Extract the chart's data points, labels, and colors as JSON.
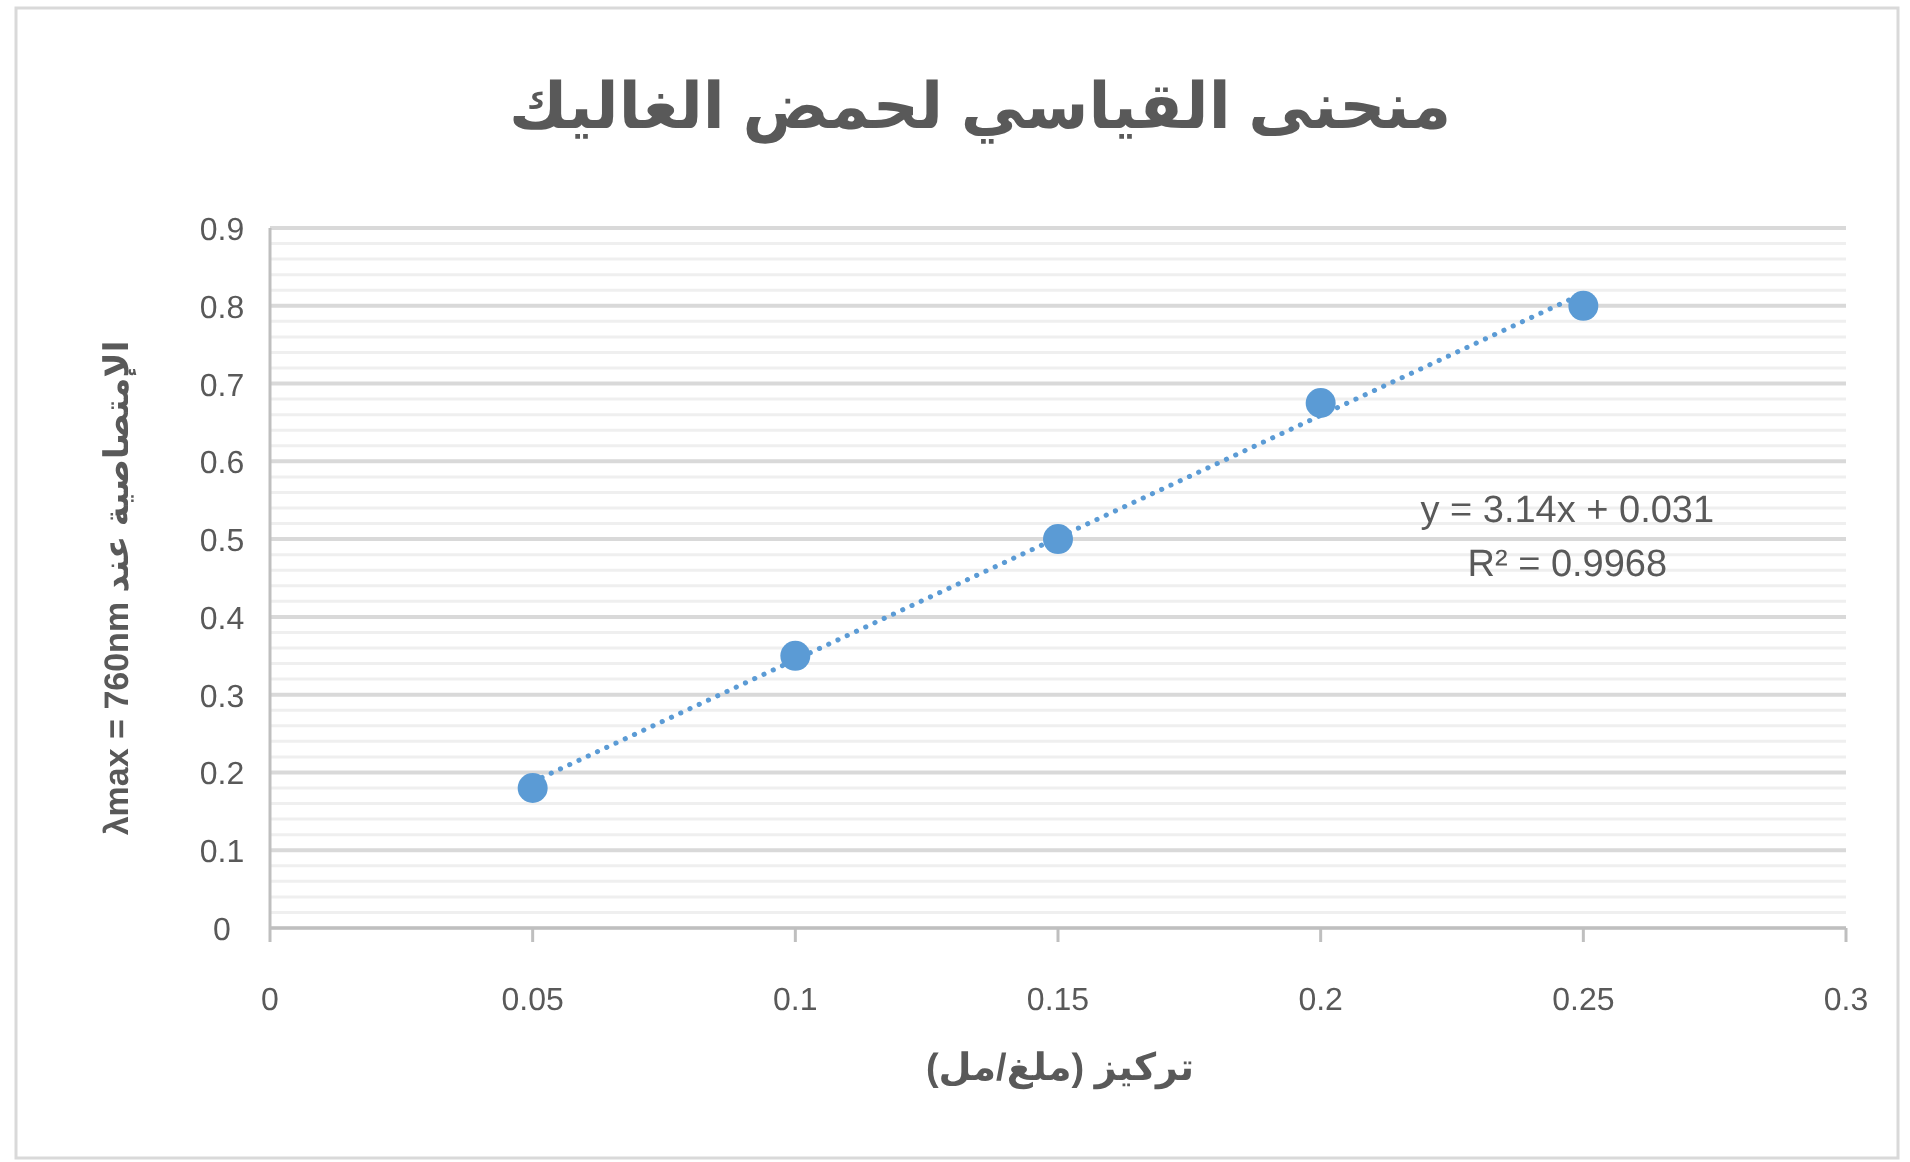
{
  "chart_data": {
    "type": "scatter",
    "title": "منحنى القياسي لحمض الغاليك",
    "xlabel": "تركيز (ملغ/مل)",
    "ylabel": "الإمتصاصية عند λmax = 760nm",
    "x": [
      0.05,
      0.1,
      0.15,
      0.2,
      0.25
    ],
    "series": [
      {
        "color": "#5b9bd5",
        "values": [
          0.18,
          0.35,
          0.5,
          0.675,
          0.8
        ],
        "marker": "circle"
      },
      {
        "type": "line",
        "color": "#5b9bd5",
        "x": [
          0.05,
          0.25
        ],
        "values": [
          0.188,
          0.816
        ],
        "line_style": "dotted",
        "marker": "none"
      }
    ],
    "annotations": [
      "y = 3.14x + 0.031",
      "R² = 0.9968"
    ],
    "xlim": [
      0,
      0.3
    ],
    "xticks": [
      0,
      0.05,
      0.1,
      0.15,
      0.2,
      0.25,
      0.3
    ],
    "ylim": [
      0,
      0.9
    ],
    "yticks": [
      0,
      {
        "value": 0.02,
        "label": null
      },
      {
        "value": 0.04,
        "label": null
      },
      {
        "value": 0.06,
        "label": null
      },
      {
        "value": 0.08,
        "label": null
      },
      0.1,
      {
        "value": 0.12,
        "label": null
      },
      {
        "value": 0.14,
        "label": null
      },
      {
        "value": 0.16,
        "label": null
      },
      {
        "value": 0.18,
        "label": null
      },
      0.2,
      {
        "value": 0.22,
        "label": null
      },
      {
        "value": 0.24,
        "label": null
      },
      {
        "value": 0.26,
        "label": null
      },
      {
        "value": 0.28,
        "label": null
      },
      0.3,
      {
        "value": 0.32,
        "label": null
      },
      {
        "value": 0.34,
        "label": null
      },
      {
        "value": 0.36,
        "label": null
      },
      {
        "value": 0.38,
        "label": null
      },
      0.4,
      {
        "value": 0.42,
        "label": null
      },
      {
        "value": 0.44,
        "label": null
      },
      {
        "value": 0.46,
        "label": null
      },
      {
        "value": 0.48,
        "label": null
      },
      0.5,
      {
        "value": 0.52,
        "label": null
      },
      {
        "value": 0.54,
        "label": null
      },
      {
        "value": 0.56,
        "label": null
      },
      {
        "value": 0.58,
        "label": null
      },
      0.6,
      {
        "value": 0.62,
        "label": null
      },
      {
        "value": 0.64,
        "label": null
      },
      {
        "value": 0.66,
        "label": null
      },
      {
        "value": 0.68,
        "label": null
      },
      0.7,
      {
        "value": 0.72,
        "label": null
      },
      {
        "value": 0.74,
        "label": null
      },
      {
        "value": 0.76,
        "label": null
      },
      {
        "value": 0.78,
        "label": null
      },
      0.8,
      {
        "value": 0.82,
        "label": null
      },
      {
        "value": 0.84,
        "label": null
      },
      {
        "value": 0.86,
        "label": null
      },
      {
        "value": 0.88,
        "label": null
      },
      0.9
    ],
    "grid": "y"
  }
}
